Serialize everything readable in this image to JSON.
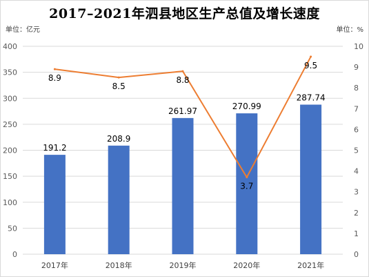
{
  "chart_data": {
    "type": "bar",
    "title": "2017–2021年泗县地区生产总值及增长速度",
    "categories": [
      "2017年",
      "2018年",
      "2019年",
      "2020年",
      "2021年"
    ],
    "left_axis": {
      "unit_label": "单位：亿元",
      "ylim": [
        0,
        400
      ],
      "ticks": [
        "0",
        "50",
        "100",
        "150",
        "200",
        "250",
        "300",
        "350",
        "400"
      ]
    },
    "right_axis": {
      "unit_label": "单位：%",
      "ylim": [
        0,
        10
      ],
      "ticks": [
        "0",
        "1",
        "2",
        "3",
        "4",
        "5",
        "6",
        "7",
        "8",
        "9",
        "10"
      ]
    },
    "series": [
      {
        "type": "bar",
        "axis": "left",
        "values": [
          191.2,
          208.9,
          261.97,
          270.99,
          287.74
        ],
        "labels": [
          "191.2",
          "208.9",
          "261.97",
          "270.99",
          "287.74"
        ],
        "color": "#4472c4"
      },
      {
        "type": "line",
        "axis": "right",
        "values": [
          8.9,
          8.5,
          8.8,
          3.7,
          9.5
        ],
        "labels": [
          "8.9",
          "8.5",
          "8.8",
          "3.7",
          "9.5"
        ],
        "color": "#ed7d31"
      }
    ],
    "grid": true,
    "legend": "none"
  }
}
